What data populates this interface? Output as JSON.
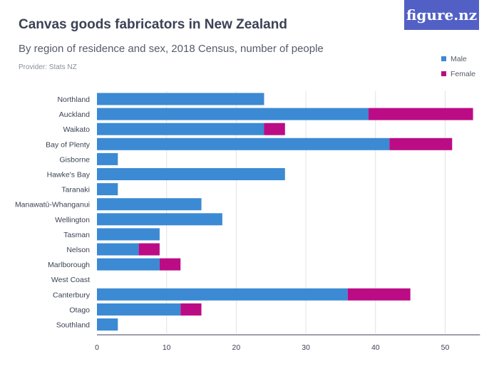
{
  "title": "Canvas goods fabricators in New Zealand",
  "subtitle": "By region of residence and sex, 2018 Census, number of people",
  "provider": "Provider: Stats NZ",
  "logo_text": "figure.nz",
  "chart_data": {
    "type": "bar",
    "orientation": "horizontal",
    "stacked": true,
    "title": "Canvas goods fabricators in New Zealand",
    "subtitle": "By region of residence and sex, 2018 Census, number of people",
    "categories": [
      "Northland",
      "Auckland",
      "Waikato",
      "Bay of Plenty",
      "Gisborne",
      "Hawke's Bay",
      "Taranaki",
      "Manawatū-Whanganui",
      "Wellington",
      "Tasman",
      "Nelson",
      "Marlborough",
      "West Coast",
      "Canterbury",
      "Otago",
      "Southland"
    ],
    "series": [
      {
        "name": "Male",
        "color": "#3b8ad3",
        "values": [
          24,
          39,
          24,
          42,
          3,
          27,
          3,
          15,
          18,
          9,
          6,
          9,
          0,
          36,
          12,
          3
        ]
      },
      {
        "name": "Female",
        "color": "#bb0c85",
        "values": [
          0,
          15,
          3,
          9,
          0,
          0,
          0,
          0,
          0,
          0,
          3,
          3,
          0,
          9,
          3,
          0
        ]
      }
    ],
    "xlim": [
      0,
      55
    ],
    "xticks": [
      0,
      10,
      20,
      30,
      40,
      50
    ],
    "grid": true,
    "legend_position": "top-right"
  }
}
